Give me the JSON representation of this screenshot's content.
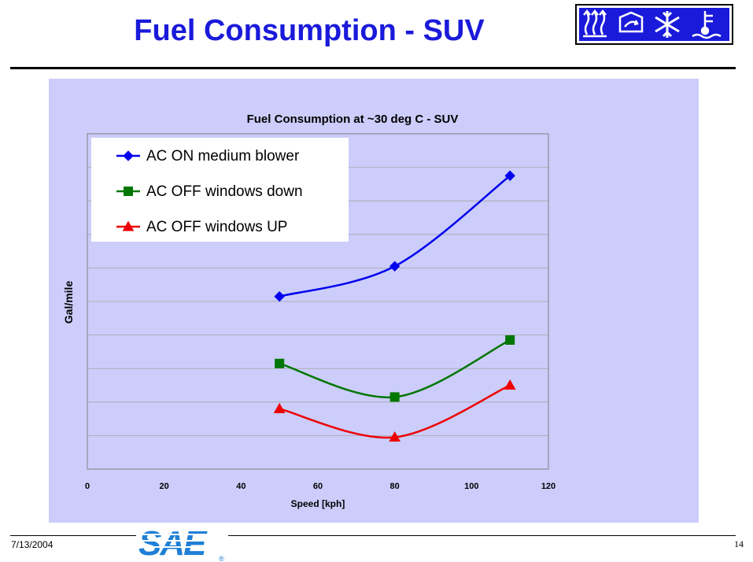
{
  "slide": {
    "title": "Fuel Consumption - SUV",
    "footer_date": "7/13/2004",
    "page_number": "14",
    "logo_text": "SAE",
    "logo_mark": "®",
    "icons": [
      "heat-waves-icon",
      "recirculation-icon",
      "snowflake-icon",
      "coolant-temperature-icon"
    ],
    "colors": {
      "title": "#1a1adb",
      "panel": "#cccdfb",
      "logo": "#1a1adb",
      "sae": "#1f7fd6"
    }
  },
  "chart_data": {
    "type": "line",
    "title": "Fuel Consumption at ~30 deg C - SUV",
    "xlabel": "Speed [kph]",
    "ylabel": "Gal/mile",
    "xlim": [
      0,
      120
    ],
    "xticks": [
      0,
      20,
      40,
      60,
      80,
      100,
      120
    ],
    "ylim": [
      0,
      10
    ],
    "y_tick_labels_shown": false,
    "grid": "horizontal",
    "legend_position": "top-left",
    "series": [
      {
        "name": "AC ON medium blower",
        "color": "#0000ee",
        "marker": "diamond",
        "x": [
          50,
          80,
          110
        ],
        "y": [
          5.15,
          6.05,
          8.75
        ]
      },
      {
        "name": "AC OFF windows down",
        "color": "#007700",
        "marker": "square",
        "x": [
          50,
          80,
          110
        ],
        "y": [
          3.15,
          2.15,
          3.85
        ]
      },
      {
        "name": "AC OFF windows UP",
        "color": "#ee0000",
        "marker": "triangle",
        "x": [
          50,
          80,
          110
        ],
        "y": [
          1.8,
          0.95,
          2.5
        ]
      }
    ]
  }
}
